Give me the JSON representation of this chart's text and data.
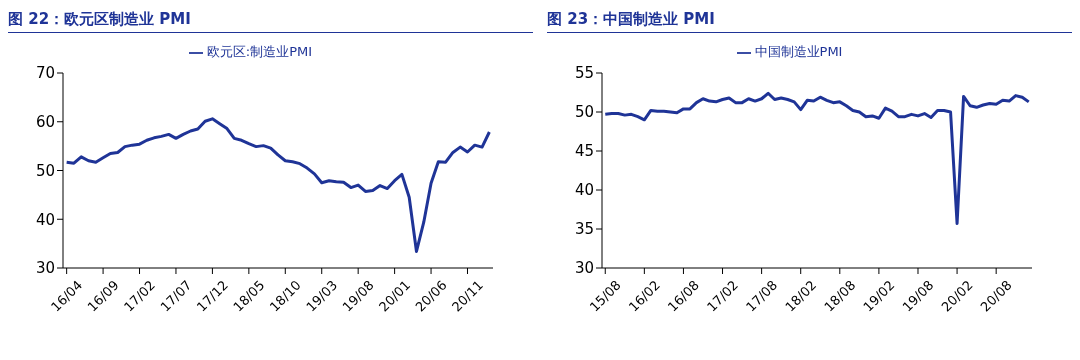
{
  "chart_data": [
    {
      "type": "line",
      "title": "图 22：欧元区制造业 PMI",
      "categories": [
        "16/04",
        null,
        null,
        null,
        null,
        "16/09",
        null,
        null,
        null,
        null,
        "17/02",
        null,
        null,
        null,
        null,
        "17/07",
        null,
        null,
        null,
        null,
        "17/12",
        null,
        null,
        null,
        null,
        "18/05",
        null,
        null,
        null,
        null,
        "18/10",
        null,
        null,
        null,
        null,
        "19/03",
        null,
        null,
        null,
        null,
        "19/08",
        null,
        null,
        null,
        null,
        "20/01",
        null,
        null,
        null,
        null,
        "20/06",
        null,
        null,
        null,
        null,
        "20/11",
        null,
        null,
        null
      ],
      "series": [
        {
          "name": "欧元区:制造业PMI",
          "color": "#1f3497",
          "values": [
            51.7,
            51.5,
            52.8,
            52.0,
            51.7,
            52.6,
            53.5,
            53.7,
            54.9,
            55.2,
            55.4,
            56.2,
            56.7,
            57.0,
            57.4,
            56.6,
            57.4,
            58.1,
            58.5,
            60.1,
            60.6,
            59.6,
            58.6,
            56.6,
            56.2,
            55.5,
            54.9,
            55.1,
            54.6,
            53.2,
            52.0,
            51.8,
            51.4,
            50.5,
            49.3,
            47.5,
            47.9,
            47.7,
            47.6,
            46.5,
            47.0,
            45.7,
            45.9,
            46.9,
            46.3,
            47.9,
            49.2,
            44.5,
            33.4,
            39.4,
            47.4,
            51.8,
            51.7,
            53.7,
            54.8,
            53.8,
            55.2,
            54.8,
            57.9
          ]
        }
      ],
      "ylim": [
        30,
        70
      ],
      "yticks": [
        30,
        40,
        50,
        60,
        70
      ],
      "grid": false,
      "legend": "top",
      "marker": "none",
      "line_style": "solid"
    },
    {
      "type": "line",
      "title": "图 23：中国制造业 PMI",
      "categories": [
        "15/08",
        null,
        null,
        null,
        null,
        null,
        "16/02",
        null,
        null,
        null,
        null,
        null,
        "16/08",
        null,
        null,
        null,
        null,
        null,
        "17/02",
        null,
        null,
        null,
        null,
        null,
        "17/08",
        null,
        null,
        null,
        null,
        null,
        "18/02",
        null,
        null,
        null,
        null,
        null,
        "18/08",
        null,
        null,
        null,
        null,
        null,
        "19/02",
        null,
        null,
        null,
        null,
        null,
        "19/08",
        null,
        null,
        null,
        null,
        null,
        "20/02",
        null,
        null,
        null,
        null,
        null,
        "20/08",
        null,
        null,
        null,
        null,
        null
      ],
      "series": [
        {
          "name": "中国制造业PMI",
          "color": "#1f3497",
          "values": [
            49.7,
            49.8,
            49.8,
            49.6,
            49.7,
            49.4,
            49.0,
            50.2,
            50.1,
            50.1,
            50.0,
            49.9,
            50.4,
            50.4,
            51.2,
            51.7,
            51.4,
            51.3,
            51.6,
            51.8,
            51.2,
            51.2,
            51.7,
            51.4,
            51.7,
            52.4,
            51.6,
            51.8,
            51.6,
            51.3,
            50.3,
            51.5,
            51.4,
            51.9,
            51.5,
            51.2,
            51.3,
            50.8,
            50.2,
            50.0,
            49.4,
            49.5,
            49.2,
            50.5,
            50.1,
            49.4,
            49.4,
            49.7,
            49.5,
            49.8,
            49.3,
            50.2,
            50.2,
            50.0,
            35.7,
            52.0,
            50.8,
            50.6,
            50.9,
            51.1,
            51.0,
            51.5,
            51.4,
            52.1,
            51.9,
            51.3
          ]
        }
      ],
      "ylim": [
        30,
        55
      ],
      "yticks": [
        30,
        35,
        40,
        45,
        50,
        55
      ],
      "grid": false,
      "legend": "top",
      "marker": "none",
      "line_style": "solid"
    }
  ]
}
